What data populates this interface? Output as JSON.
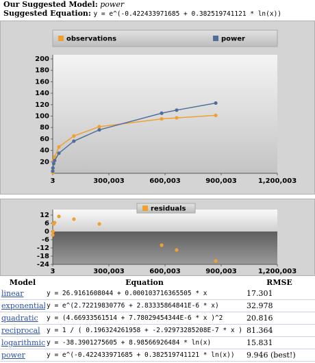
{
  "header": {
    "model_label": "Our Suggested Model:",
    "model": "power",
    "equation_label": "Suggested Equation:",
    "equation": "y = e^(-0.422433971685 + 0.382519741121 * ln(x))"
  },
  "chart_data": [
    {
      "type": "line",
      "x": [
        100,
        1000,
        5000,
        10000,
        33000,
        113000,
        249000,
        582000,
        662000,
        871000
      ],
      "series": [
        {
          "name": "observations",
          "color": "#f0a030",
          "values": [
            1.3,
            9.2,
            22.5,
            28.7,
            46.1,
            65.2,
            81.5,
            95.1,
            96.9,
            101.3
          ]
        },
        {
          "name": "power",
          "color": "#4f6f9a",
          "values": [
            3.8,
            9.2,
            17.0,
            22.2,
            35.1,
            56.2,
            76.0,
            105.1,
            110.4,
            122.8
          ]
        }
      ],
      "xlim": [
        3,
        1200003
      ],
      "xticks": [
        3,
        {
          "value": 300003,
          "label": "300,003"
        },
        {
          "value": 600003,
          "label": "600,003"
        },
        {
          "value": 900003,
          "label": "900,003"
        },
        {
          "value": 1200003,
          "label": "1,200,003"
        }
      ],
      "ylim": [
        0,
        200
      ],
      "yticks": [
        20,
        40,
        60,
        80,
        100,
        120,
        140,
        160,
        180,
        200
      ]
    },
    {
      "type": "scatter",
      "x": [
        100,
        1000,
        5000,
        10000,
        33000,
        113000,
        249000,
        582000,
        662000,
        871000
      ],
      "series": [
        {
          "name": "residuals",
          "color": "#f0a030",
          "values": [
            -2.5,
            0,
            5.5,
            6.5,
            11,
            9,
            5.5,
            -10,
            -13.5,
            -21.5
          ]
        }
      ],
      "xlim": [
        3,
        1200003
      ],
      "xticks": [
        3,
        {
          "value": 300003,
          "label": "300,003"
        },
        {
          "value": 600003,
          "label": "600,003"
        },
        {
          "value": 900003,
          "label": "900,003"
        },
        {
          "value": 1200003,
          "label": "1,200,003"
        }
      ],
      "ylim": [
        -24,
        16
      ],
      "yticks": [
        -24,
        -18,
        -12,
        -6,
        0,
        6,
        12
      ]
    }
  ],
  "table": {
    "columns": [
      "Model",
      "Equation",
      "RMSE"
    ],
    "rows": [
      [
        "linear",
        "y = 26.9161608044 + 0.000103716365505 * x",
        "17.301"
      ],
      [
        "exponential",
        "y = e^(2.72219830776 + 2.83335864841E-6 * x)",
        "32.978"
      ],
      [
        "quadratic",
        "y = (4.66933561514 + 7.78029454344E-6 * x )^2",
        "20.816"
      ],
      [
        "reciprocal",
        "y = 1 / ( 0.196324261958 + -2.92973285208E-7 * x )",
        "81.364"
      ],
      [
        "logarithmic",
        "y = -38.3901275605 + 8.98566926484 * ln(x)",
        "15.831"
      ],
      [
        "power",
        "y = e^(-0.422433971685 + 0.382519741121 * ln(x))",
        "9.946 (best!)"
      ]
    ]
  }
}
